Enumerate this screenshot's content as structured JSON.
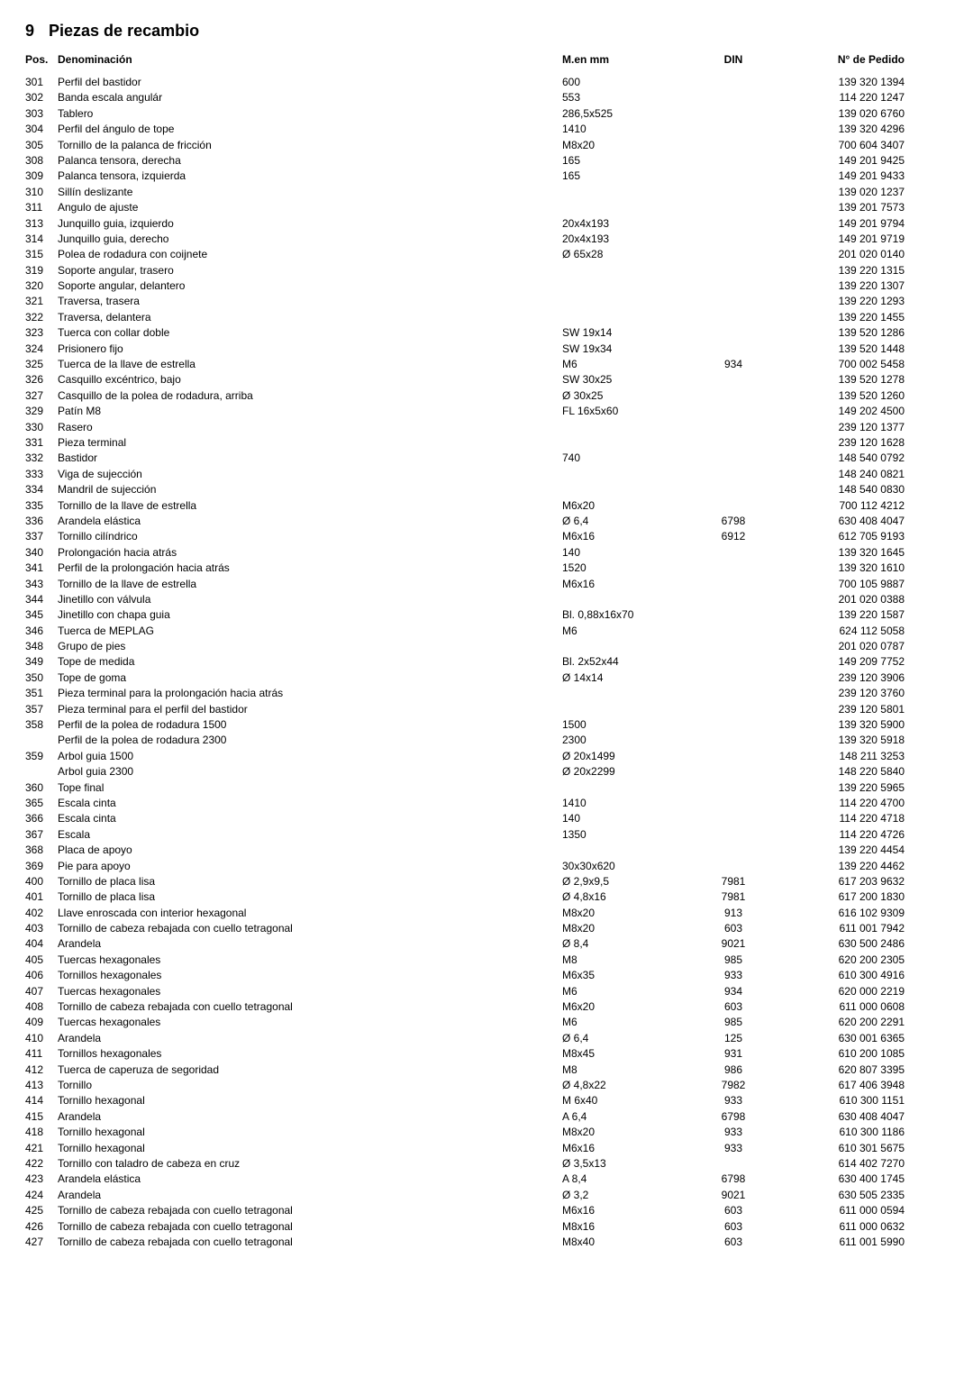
{
  "section": {
    "number": "9",
    "title": "Piezas de recambio"
  },
  "headers": {
    "pos": "Pos.",
    "denominacion": "Denominación",
    "menmm": "M.en mm",
    "din": "DIN",
    "pedido": "N° de Pedido"
  },
  "rows": [
    {
      "pos": "301",
      "den": "Perfil del bastidor",
      "mm": "600",
      "din": "",
      "ped": "139 320 1394"
    },
    {
      "pos": "302",
      "den": "Banda escala angulár",
      "mm": "553",
      "din": "",
      "ped": "114 220 1247"
    },
    {
      "pos": "303",
      "den": "Tablero",
      "mm": "286,5x525",
      "din": "",
      "ped": "139 020 6760"
    },
    {
      "pos": "304",
      "den": "Perfil del ángulo de tope",
      "mm": "1410",
      "din": "",
      "ped": "139 320 4296"
    },
    {
      "pos": "305",
      "den": "Tornillo de la palanca de fricción",
      "mm": "M8x20",
      "din": "",
      "ped": "700 604 3407"
    },
    {
      "pos": "308",
      "den": "Palanca tensora, derecha",
      "mm": "165",
      "din": "",
      "ped": "149 201 9425"
    },
    {
      "pos": "309",
      "den": "Palanca tensora, izquierda",
      "mm": "165",
      "din": "",
      "ped": "149 201 9433"
    },
    {
      "pos": "310",
      "den": "Sillín deslizante",
      "mm": "",
      "din": "",
      "ped": "139 020 1237"
    },
    {
      "pos": "311",
      "den": "Angulo de ajuste",
      "mm": "",
      "din": "",
      "ped": "139 201 7573"
    },
    {
      "pos": "313",
      "den": "Junquillo guia, izquierdo",
      "mm": "20x4x193",
      "din": "",
      "ped": "149 201 9794"
    },
    {
      "pos": "314",
      "den": "Junquillo guia, derecho",
      "mm": "20x4x193",
      "din": "",
      "ped": "149 201 9719"
    },
    {
      "pos": "315",
      "den": "Polea de rodadura con coijnete",
      "mm": "Ø 65x28",
      "din": "",
      "ped": "201 020 0140"
    },
    {
      "pos": "319",
      "den": "Soporte angular, trasero",
      "mm": "",
      "din": "",
      "ped": "139 220 1315"
    },
    {
      "pos": "320",
      "den": "Soporte angular, delantero",
      "mm": "",
      "din": "",
      "ped": "139 220 1307"
    },
    {
      "pos": "321",
      "den": "Traversa, trasera",
      "mm": "",
      "din": "",
      "ped": "139 220 1293"
    },
    {
      "pos": "322",
      "den": "Traversa, delantera",
      "mm": "",
      "din": "",
      "ped": "139 220 1455"
    },
    {
      "pos": "323",
      "den": "Tuerca con collar doble",
      "mm": "SW 19x14",
      "din": "",
      "ped": "139 520 1286"
    },
    {
      "pos": "324",
      "den": "Prisionero fijo",
      "mm": "SW 19x34",
      "din": "",
      "ped": "139 520 1448"
    },
    {
      "pos": "325",
      "den": "Tuerca de la llave de estrella",
      "mm": "M6",
      "din": "934",
      "ped": "700 002 5458"
    },
    {
      "pos": "326",
      "den": "Casquillo excéntrico, bajo",
      "mm": "SW 30x25",
      "din": "",
      "ped": "139 520 1278"
    },
    {
      "pos": "327",
      "den": "Casquillo de la polea de rodadura, arriba",
      "mm": "Ø 30x25",
      "din": "",
      "ped": "139 520 1260"
    },
    {
      "pos": "329",
      "den": "Patín M8",
      "mm": "FL 16x5x60",
      "din": "",
      "ped": "149 202 4500"
    },
    {
      "pos": "330",
      "den": "Rasero",
      "mm": "",
      "din": "",
      "ped": "239 120 1377"
    },
    {
      "pos": "331",
      "den": "Pieza terminal",
      "mm": "",
      "din": "",
      "ped": "239 120 1628"
    },
    {
      "pos": "332",
      "den": "Bastidor",
      "mm": "740",
      "din": "",
      "ped": "148 540 0792"
    },
    {
      "pos": "333",
      "den": "Viga de sujección",
      "mm": "",
      "din": "",
      "ped": "148 240 0821"
    },
    {
      "pos": "334",
      "den": "Mandril de sujección",
      "mm": "",
      "din": "",
      "ped": "148 540 0830"
    },
    {
      "pos": "335",
      "den": "Tornillo de la llave de estrella",
      "mm": "M6x20",
      "din": "",
      "ped": "700 112 4212"
    },
    {
      "pos": "336",
      "den": "Arandela elástica",
      "mm": "Ø 6,4",
      "din": "6798",
      "ped": "630 408 4047"
    },
    {
      "pos": "337",
      "den": "Tornillo cilíndrico",
      "mm": "M6x16",
      "din": "6912",
      "ped": "612 705 9193"
    },
    {
      "pos": "340",
      "den": "Prolongación hacia atrás",
      "mm": "140",
      "din": "",
      "ped": "139 320 1645"
    },
    {
      "pos": "341",
      "den": "Perfil de la prolongación hacia atrás",
      "mm": "1520",
      "din": "",
      "ped": "139 320 1610"
    },
    {
      "pos": "343",
      "den": "Tornillo de la llave de estrella",
      "mm": "M6x16",
      "din": "",
      "ped": "700 105 9887"
    },
    {
      "pos": "344",
      "den": "Jinetillo con válvula",
      "mm": "",
      "din": "",
      "ped": "201 020 0388"
    },
    {
      "pos": "345",
      "den": "Jinetillo con chapa guia",
      "mm": "Bl. 0,88x16x70",
      "din": "",
      "ped": "139 220 1587"
    },
    {
      "pos": "346",
      "den": "Tuerca de MEPLAG",
      "mm": "M6",
      "din": "",
      "ped": "624 112 5058"
    },
    {
      "pos": "348",
      "den": "Grupo de pies",
      "mm": "",
      "din": "",
      "ped": "201 020 0787"
    },
    {
      "pos": "349",
      "den": "Tope de medida",
      "mm": "Bl. 2x52x44",
      "din": "",
      "ped": "149 209 7752"
    },
    {
      "pos": "350",
      "den": "Tope de goma",
      "mm": "Ø 14x14",
      "din": "",
      "ped": "239 120 3906"
    },
    {
      "pos": "351",
      "den": "Pieza terminal para la prolongación hacia atrás",
      "mm": "",
      "din": "",
      "ped": "239 120 3760"
    },
    {
      "pos": "357",
      "den": "Pieza terminal para el perfil del bastidor",
      "mm": "",
      "din": "",
      "ped": "239 120 5801"
    },
    {
      "pos": "358",
      "den": "Perfil de la polea de rodadura 1500",
      "mm": "1500",
      "din": "",
      "ped": "139 320 5900"
    },
    {
      "pos": "",
      "den": "Perfil de la polea de rodadura 2300",
      "mm": "2300",
      "din": "",
      "ped": "139 320 5918"
    },
    {
      "pos": "359",
      "den": "Arbol guia 1500",
      "mm": "Ø 20x1499",
      "din": "",
      "ped": "148 211 3253"
    },
    {
      "pos": "",
      "den": "Arbol guia 2300",
      "mm": "Ø 20x2299",
      "din": "",
      "ped": "148 220 5840"
    },
    {
      "pos": "360",
      "den": "Tope final",
      "mm": "",
      "din": "",
      "ped": "139 220 5965"
    },
    {
      "pos": "365",
      "den": "Escala cinta",
      "mm": "1410",
      "din": "",
      "ped": "114 220 4700"
    },
    {
      "pos": "366",
      "den": "Escala cinta",
      "mm": "140",
      "din": "",
      "ped": "114 220 4718"
    },
    {
      "pos": "367",
      "den": "Escala",
      "mm": "1350",
      "din": "",
      "ped": "114 220 4726"
    },
    {
      "pos": "368",
      "den": "Placa de apoyo",
      "mm": "",
      "din": "",
      "ped": "139 220 4454"
    },
    {
      "pos": "369",
      "den": "Pie para apoyo",
      "mm": "30x30x620",
      "din": "",
      "ped": "139 220 4462"
    },
    {
      "pos": "400",
      "den": "Tornillo de placa lisa",
      "mm": "Ø 2,9x9,5",
      "din": "7981",
      "ped": "617 203 9632"
    },
    {
      "pos": "401",
      "den": "Tornillo de placa lisa",
      "mm": "Ø 4,8x16",
      "din": "7981",
      "ped": "617 200 1830"
    },
    {
      "pos": "402",
      "den": "Llave enroscada con interior hexagonal",
      "mm": "M8x20",
      "din": "913",
      "ped": "616 102 9309"
    },
    {
      "pos": "403",
      "den": "Tornillo de cabeza rebajada con cuello tetragonal",
      "mm": "M8x20",
      "din": "603",
      "ped": "611 001 7942"
    },
    {
      "pos": "404",
      "den": "Arandela",
      "mm": "Ø 8,4",
      "din": "9021",
      "ped": "630 500 2486"
    },
    {
      "pos": "405",
      "den": "Tuercas hexagonales",
      "mm": "M8",
      "din": "985",
      "ped": "620 200 2305"
    },
    {
      "pos": "406",
      "den": "Tornillos hexagonales",
      "mm": "M6x35",
      "din": "933",
      "ped": "610 300 4916"
    },
    {
      "pos": "407",
      "den": "Tuercas hexagonales",
      "mm": "M6",
      "din": "934",
      "ped": "620 000 2219"
    },
    {
      "pos": "408",
      "den": "Tornillo de cabeza rebajada con cuello tetragonal",
      "mm": "M6x20",
      "din": "603",
      "ped": "611 000 0608"
    },
    {
      "pos": "409",
      "den": "Tuercas hexagonales",
      "mm": "M6",
      "din": "985",
      "ped": "620 200 2291"
    },
    {
      "pos": "410",
      "den": "Arandela",
      "mm": "Ø 6,4",
      "din": "125",
      "ped": "630 001 6365"
    },
    {
      "pos": "411",
      "den": "Tornillos hexagonales",
      "mm": "M8x45",
      "din": "931",
      "ped": "610 200 1085"
    },
    {
      "pos": "412",
      "den": "Tuerca de caperuza de segoridad",
      "mm": "M8",
      "din": "986",
      "ped": "620 807 3395"
    },
    {
      "pos": "413",
      "den": "Tornillo",
      "mm": "Ø 4,8x22",
      "din": "7982",
      "ped": "617 406 3948"
    },
    {
      "pos": "414",
      "den": "Tornillo hexagonal",
      "mm": "M 6x40",
      "din": "933",
      "ped": "610 300 1151"
    },
    {
      "pos": "415",
      "den": "Arandela",
      "mm": "A 6,4",
      "din": "6798",
      "ped": "630 408 4047"
    },
    {
      "pos": "418",
      "den": "Tornillo hexagonal",
      "mm": "M8x20",
      "din": "933",
      "ped": "610 300 1186"
    },
    {
      "pos": "421",
      "den": "Tornillo hexagonal",
      "mm": "M6x16",
      "din": "933",
      "ped": "610 301 5675"
    },
    {
      "pos": "422",
      "den": "Tornillo con taladro de cabeza en cruz",
      "mm": "Ø 3,5x13",
      "din": "",
      "ped": "614 402 7270"
    },
    {
      "pos": "423",
      "den": "Arandela elástica",
      "mm": "A 8,4",
      "din": "6798",
      "ped": "630 400 1745"
    },
    {
      "pos": "424",
      "den": "Arandela",
      "mm": "Ø 3,2",
      "din": "9021",
      "ped": "630 505 2335"
    },
    {
      "pos": "425",
      "den": "Tornillo de cabeza rebajada con cuello tetragonal",
      "mm": "M6x16",
      "din": "603",
      "ped": "611 000 0594"
    },
    {
      "pos": "426",
      "den": "Tornillo de cabeza rebajada con cuello tetragonal",
      "mm": "M8x16",
      "din": "603",
      "ped": "611 000 0632"
    },
    {
      "pos": "427",
      "den": "Tornillo de cabeza rebajada con cuello tetragonal",
      "mm": "M8x40",
      "din": "603",
      "ped": "611 001 5990"
    }
  ]
}
